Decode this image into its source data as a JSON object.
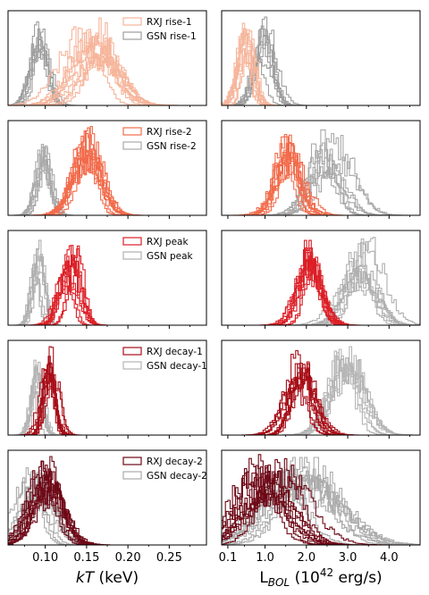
{
  "chart_data": {
    "type": "histogram-grid",
    "rows": 5,
    "columns": [
      {
        "xlabel_parts": [
          "kT",
          " (keV)"
        ],
        "xlim": [
          0.055,
          0.295
        ],
        "xticks": [
          0.1,
          0.15,
          0.2,
          0.25
        ],
        "xtick_labels": [
          "0.10",
          "0.15",
          "0.20",
          "0.25"
        ],
        "minor_ticks": [
          0.075,
          0.125,
          0.175,
          0.225,
          0.275
        ]
      },
      {
        "xlabel_parts": [
          "L",
          "BOL",
          " (10",
          "42",
          " erg/s)"
        ],
        "xlim": [
          -0.05,
          4.75
        ],
        "xticks": [
          0.1,
          1.0,
          2.0,
          3.0,
          4.0
        ],
        "xtick_labels": [
          "0.1",
          "1.0",
          "2.0",
          "3.0",
          "4.0"
        ],
        "minor_ticks": [
          0.5,
          1.5,
          2.5,
          3.5,
          4.5
        ]
      }
    ],
    "panels": [
      {
        "legend": [
          "RXJ rise-1",
          "GSN rise-1"
        ],
        "rxj_color": "#f6b59b",
        "gsn_color": "#9e9e9e",
        "kT": {
          "rxj_center": 0.155,
          "rxj_spread": 0.022,
          "gsn_center": 0.091,
          "gsn_spread": 0.009
        },
        "lbol": {
          "rxj_center": 0.45,
          "rxj_spread": 0.16,
          "gsn_center": 0.95,
          "gsn_spread": 0.22
        }
      },
      {
        "legend": [
          "RXJ rise-2",
          "GSN rise-2"
        ],
        "rxj_color": "#f26b4b",
        "gsn_color": "#a9a9a9",
        "kT": {
          "rxj_center": 0.148,
          "rxj_spread": 0.014,
          "gsn_center": 0.095,
          "gsn_spread": 0.008
        },
        "lbol": {
          "rxj_center": 1.5,
          "rxj_spread": 0.28,
          "gsn_center": 2.45,
          "gsn_spread": 0.35
        }
      },
      {
        "legend": [
          "RXJ peak",
          "GSN peak"
        ],
        "rxj_color": "#dc1f26",
        "gsn_color": "#b0b0b0",
        "kT": {
          "rxj_center": 0.128,
          "rxj_spread": 0.01,
          "gsn_center": 0.089,
          "gsn_spread": 0.006
        },
        "lbol": {
          "rxj_center": 2.05,
          "rxj_spread": 0.25,
          "gsn_center": 3.2,
          "gsn_spread": 0.35
        }
      },
      {
        "legend": [
          "RXJ decay-1",
          "GSN decay-1"
        ],
        "rxj_color": "#a70d17",
        "gsn_color": "#b5b5b5",
        "kT": {
          "rxj_center": 0.103,
          "rxj_spread": 0.007,
          "gsn_center": 0.087,
          "gsn_spread": 0.006
        },
        "lbol": {
          "rxj_center": 1.8,
          "rxj_spread": 0.28,
          "gsn_center": 2.85,
          "gsn_spread": 0.35
        }
      },
      {
        "legend": [
          "RXJ decay-2",
          "GSN decay-2"
        ],
        "rxj_color": "#6e0816",
        "gsn_color": "#aaaaaa",
        "kT": {
          "rxj_center": 0.095,
          "rxj_spread": 0.018,
          "gsn_center": 0.088,
          "gsn_spread": 0.016
        },
        "lbol": {
          "rxj_center": 0.95,
          "rxj_spread": 0.55,
          "gsn_center": 1.7,
          "gsn_spread": 0.75
        }
      }
    ],
    "grid": false,
    "legend_position": "upper right of each left panel"
  }
}
